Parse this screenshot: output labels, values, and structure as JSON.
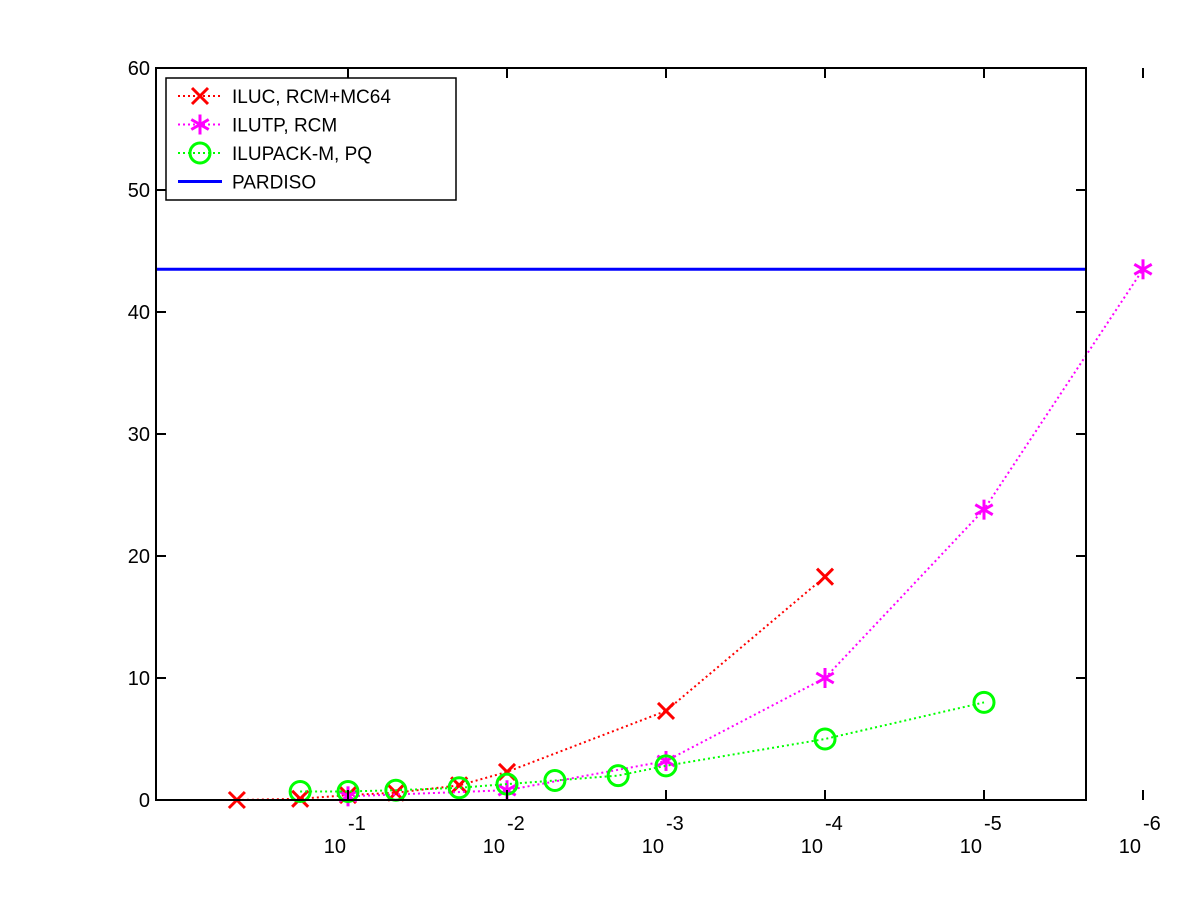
{
  "chart_data": {
    "type": "line",
    "x_scale": "log-reversed",
    "x_axis": {
      "ticks": [
        {
          "value": 0.1,
          "base": "10",
          "exponent": "-1"
        },
        {
          "value": 0.01,
          "base": "10",
          "exponent": "-2"
        },
        {
          "value": 0.001,
          "base": "10",
          "exponent": "-3"
        },
        {
          "value": 0.0001,
          "base": "10",
          "exponent": "-4"
        },
        {
          "value": 1e-05,
          "base": "10",
          "exponent": "-5"
        },
        {
          "value": 1e-06,
          "base": "10",
          "exponent": "-6"
        }
      ]
    },
    "ylim": [
      0,
      60
    ],
    "yticks": [
      0,
      10,
      20,
      30,
      40,
      50,
      60
    ],
    "grid": false,
    "legend_position": "top-left",
    "series": [
      {
        "name": "ILUC, RCM+MC64",
        "color": "#ff0000",
        "line_style": "dotted",
        "marker": "x",
        "x": [
          0.5,
          0.2,
          0.1,
          0.05,
          0.02,
          0.01,
          0.001,
          0.0001
        ],
        "y": [
          0.0,
          0.1,
          0.4,
          0.6,
          1.2,
          2.3,
          7.3,
          18.3
        ]
      },
      {
        "name": "ILUTP, RCM",
        "color": "#ff00ff",
        "line_style": "dotted",
        "marker": "asterisk",
        "x": [
          0.1,
          0.01,
          0.001,
          0.0001,
          1e-05,
          1e-06
        ],
        "y": [
          0.3,
          0.8,
          3.2,
          10.0,
          23.8,
          43.5
        ]
      },
      {
        "name": "ILUPACK-M, PQ",
        "color": "#00ff00",
        "line_style": "dotted",
        "marker": "circle",
        "x": [
          0.2,
          0.1,
          0.05,
          0.02,
          0.01,
          0.005,
          0.002,
          0.001,
          0.0001,
          1e-05
        ],
        "y": [
          0.7,
          0.7,
          0.8,
          1.0,
          1.3,
          1.6,
          2.0,
          2.8,
          5.0,
          8.0
        ]
      },
      {
        "name": "PARDISO",
        "color": "#0000ff",
        "line_style": "solid",
        "marker": "none",
        "constant": 43.5
      }
    ]
  }
}
